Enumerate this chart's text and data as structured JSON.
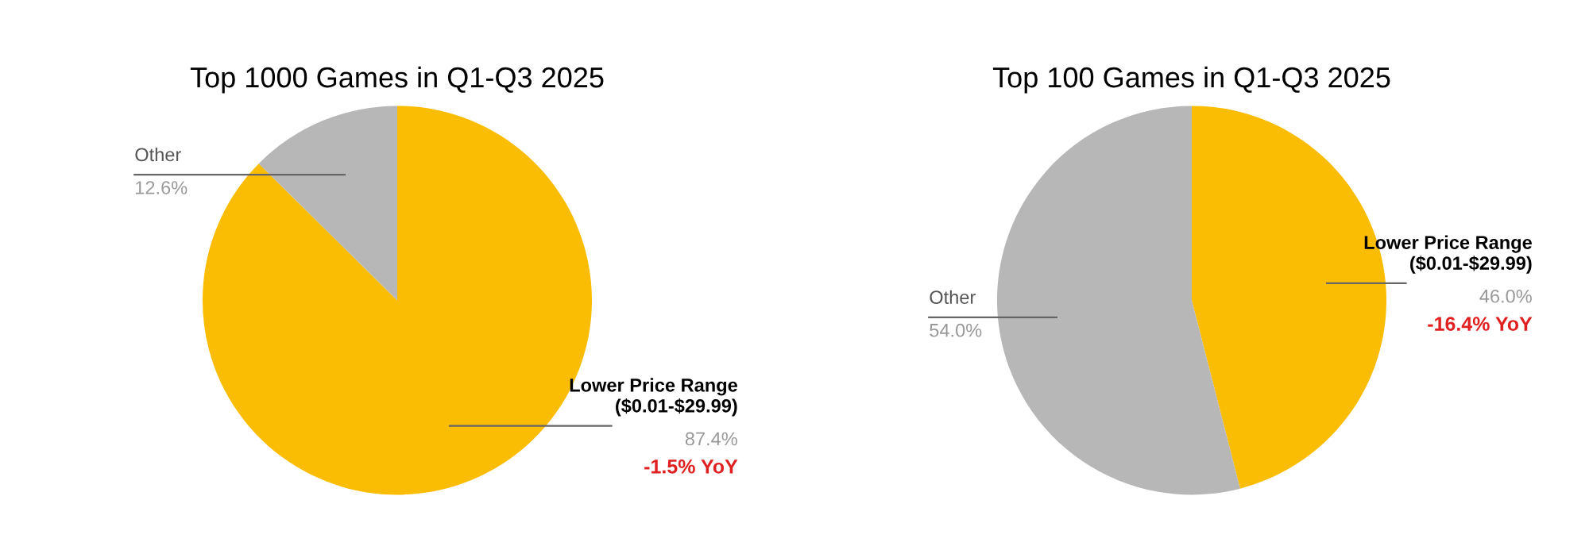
{
  "chart_data": [
    {
      "type": "pie",
      "title": "Top 1000 Games in Q1-Q3 2025",
      "categories": [
        "Lower Price Range\n($0.01-$29.99)",
        "Other"
      ],
      "values": [
        87.4,
        12.6
      ],
      "colors": [
        "#fbbc04",
        "#b7b7b7"
      ],
      "value_labels": [
        "87.4%",
        "12.6%"
      ],
      "annotations": [
        "-1.5% YoY"
      ]
    },
    {
      "type": "pie",
      "title": "Top 100 Games in Q1-Q3 2025",
      "categories": [
        "Lower Price Range\n($0.01-$29.99)",
        "Other"
      ],
      "values": [
        46.0,
        54.0
      ],
      "colors": [
        "#fbbc04",
        "#b7b7b7"
      ],
      "value_labels": [
        "46.0%",
        "54.0%"
      ],
      "annotations": [
        "-16.4% YoY"
      ]
    }
  ]
}
